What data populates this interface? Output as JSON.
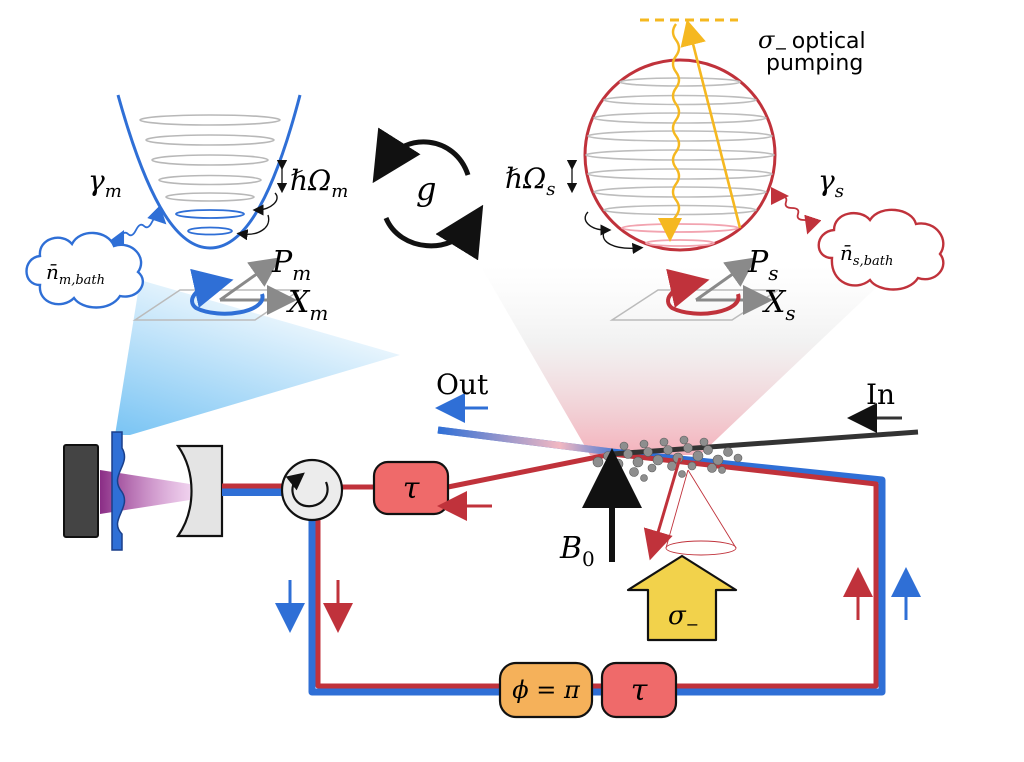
{
  "labels": {
    "gamma_m": "γ",
    "gamma_m_sub": "m",
    "n_m_bath": "n̄",
    "n_m_bath_sub": "m,bath",
    "hbar_omega_m": "ℏΩ",
    "hbar_omega_m_sub": "m",
    "g": "g",
    "hbar_omega_s": "ℏΩ",
    "hbar_omega_s_sub": "s",
    "gamma_s": "γ",
    "gamma_s_sub": "s",
    "n_s_bath": "n̄",
    "n_s_bath_sub": "s,bath",
    "P_m": "P",
    "P_m_sub": "m",
    "X_m": "X",
    "X_m_sub": "m",
    "P_s": "P",
    "P_s_sub": "s",
    "X_s": "X",
    "X_s_sub": "s",
    "sigma_top": "σ",
    "sigma_top_sub": "−",
    "optical_line1": "optical",
    "optical_line2": "pumping",
    "out": "Out",
    "in": "In",
    "tau1": "τ",
    "tau2": "τ",
    "phi": "ϕ = π",
    "B0": "B",
    "B0_sub": "0",
    "sigma_box": "σ",
    "sigma_box_sub": "−"
  },
  "colors": {
    "blue": "#2f6fd6",
    "red": "#c0323b",
    "tau_fill": "#ef6a6a",
    "phi_fill": "#f5b15a",
    "sigma_fill": "#f2d24b",
    "yellow": "#f5b820",
    "gray": "#8a8a8a",
    "black": "#111111"
  }
}
